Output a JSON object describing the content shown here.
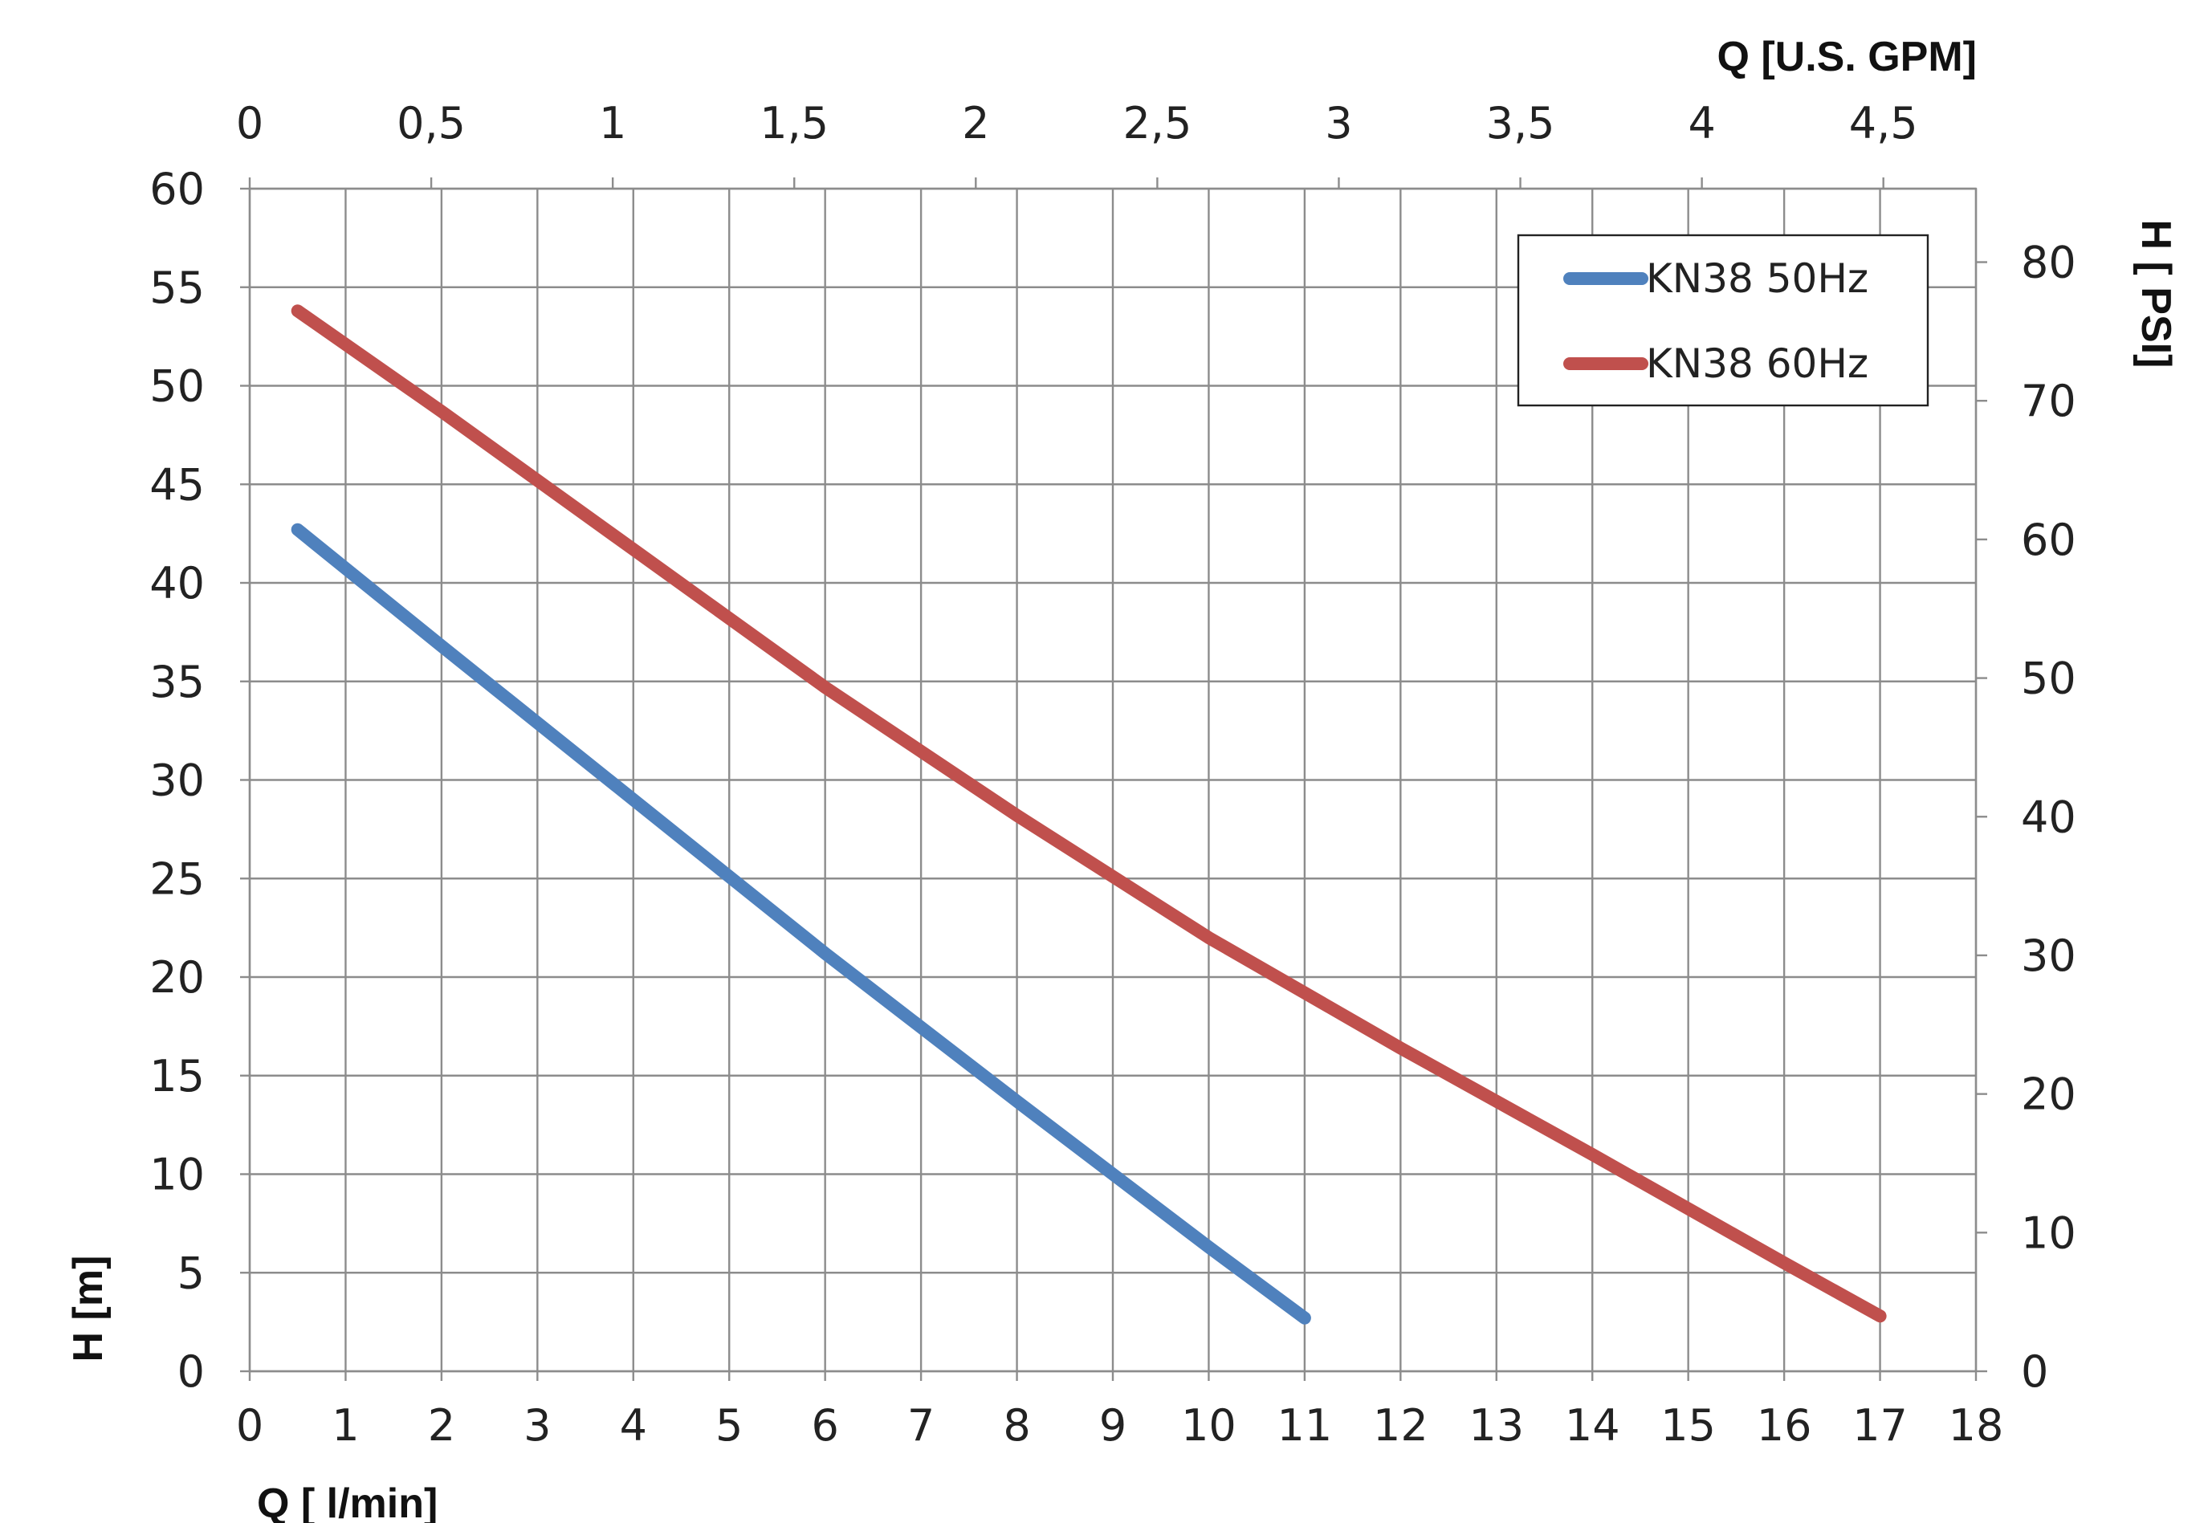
{
  "chart_data": {
    "type": "line",
    "x_bottom": {
      "label": "Q [ l/min]",
      "min": 0,
      "max": 18,
      "step": 1,
      "ticks": [
        "0",
        "1",
        "2",
        "3",
        "4",
        "5",
        "6",
        "7",
        "8",
        "9",
        "10",
        "11",
        "12",
        "13",
        "14",
        "15",
        "16",
        "17",
        "18"
      ]
    },
    "x_top": {
      "label": "Q  [U.S. GPM]",
      "min": 0,
      "max": 4.755,
      "ticks": [
        {
          "value": 0,
          "label": "0"
        },
        {
          "value": 0.5,
          "label": "0,5"
        },
        {
          "value": 1,
          "label": "1"
        },
        {
          "value": 1.5,
          "label": "1,5"
        },
        {
          "value": 2,
          "label": "2"
        },
        {
          "value": 2.5,
          "label": "2,5"
        },
        {
          "value": 3,
          "label": "3"
        },
        {
          "value": 3.5,
          "label": "3,5"
        },
        {
          "value": 4,
          "label": "4"
        },
        {
          "value": 4.5,
          "label": "4,5"
        }
      ]
    },
    "y_left": {
      "label": "H [m]",
      "min": 0,
      "max": 60,
      "step": 5,
      "ticks": [
        "0",
        "5",
        "10",
        "15",
        "20",
        "25",
        "30",
        "35",
        "40",
        "45",
        "50",
        "55",
        "60"
      ]
    },
    "y_right": {
      "label": "H [ PSI]",
      "min": 0,
      "max": 85.3,
      "ticks": [
        {
          "value": 0,
          "label": "0"
        },
        {
          "value": 10,
          "label": "10"
        },
        {
          "value": 20,
          "label": "20"
        },
        {
          "value": 30,
          "label": "30"
        },
        {
          "value": 40,
          "label": "40"
        },
        {
          "value": 50,
          "label": "50"
        },
        {
          "value": 60,
          "label": "60"
        },
        {
          "value": 70,
          "label": "70"
        },
        {
          "value": 80,
          "label": "80"
        }
      ]
    },
    "grid": true,
    "legend": {
      "placement": "top-right"
    },
    "series": [
      {
        "name": "KN38 50Hz",
        "color": "#4f81bd",
        "x": [
          0.5,
          2,
          4,
          6,
          8,
          10,
          11
        ],
        "y": [
          42.7,
          36.8,
          29.0,
          21.2,
          13.7,
          6.3,
          2.7
        ]
      },
      {
        "name": "KN38 60Hz",
        "color": "#c0504d",
        "x": [
          0.5,
          2,
          4,
          6,
          8,
          10,
          12,
          14,
          16,
          17
        ],
        "y": [
          53.8,
          48.7,
          41.7,
          34.7,
          28.2,
          22.0,
          16.4,
          11.0,
          5.5,
          2.8
        ]
      }
    ]
  }
}
